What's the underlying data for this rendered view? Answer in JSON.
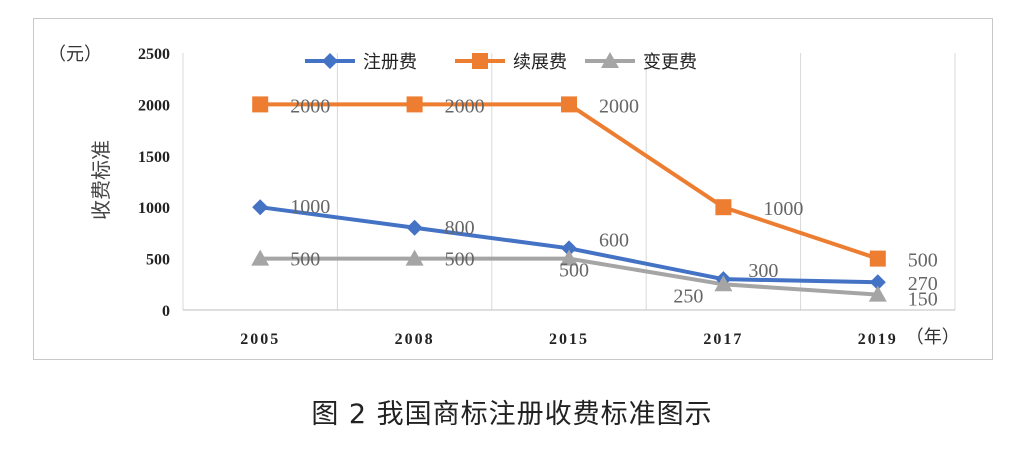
{
  "caption": "图 2 我国商标注册收费标准图示",
  "chart_data": {
    "type": "line",
    "categories": [
      "2005",
      "2008",
      "2015",
      "2017",
      "2019"
    ],
    "ylim": [
      0,
      2500
    ],
    "yticks": [
      0,
      500,
      1000,
      1500,
      2000,
      2500
    ],
    "ylabel": "收费标准",
    "y_unit": "（元）",
    "x_unit": "（年）",
    "grid": "vertical",
    "legend_position": "top",
    "series": [
      {
        "name": "注册费",
        "color": "#4472c4",
        "marker": "diamond",
        "values": [
          1000,
          800,
          600,
          300,
          270
        ],
        "labels": [
          "1000",
          "800",
          "600",
          "300",
          "270"
        ]
      },
      {
        "name": "续展费",
        "color": "#ed7d31",
        "marker": "square",
        "values": [
          2000,
          2000,
          2000,
          1000,
          500
        ],
        "labels": [
          "2000",
          "2000",
          "2000",
          "1000",
          "500"
        ]
      },
      {
        "name": "变更费",
        "color": "#a5a5a5",
        "marker": "triangle",
        "values": [
          500,
          500,
          500,
          250,
          150
        ],
        "labels": [
          "500",
          "500",
          "500",
          "250",
          "150"
        ]
      }
    ]
  }
}
